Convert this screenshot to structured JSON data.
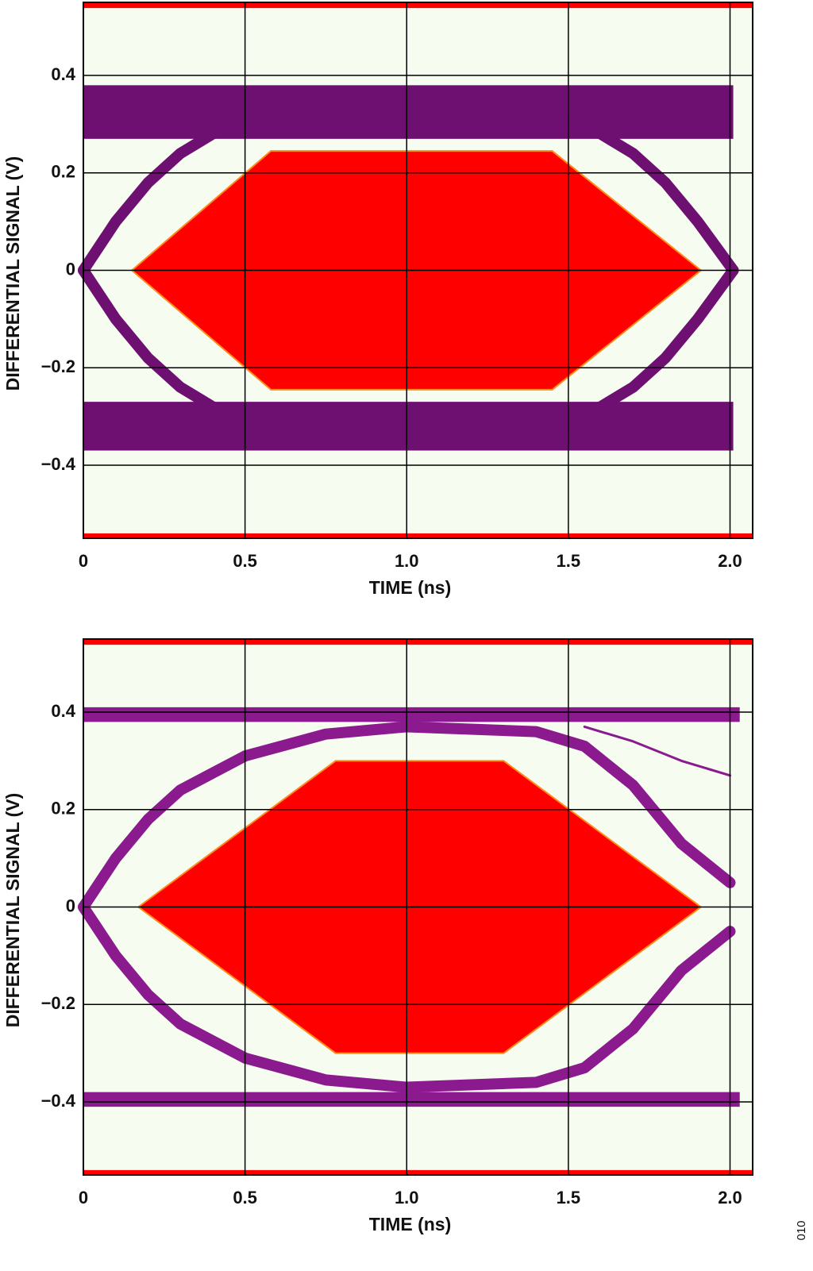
{
  "figure_code": "010",
  "chart_data": [
    {
      "type": "eye",
      "x_label": "TIME (ns)",
      "y_label": "DIFFERENTIAL SIGNAL (V)",
      "xlim": [
        0,
        2.07
      ],
      "ylim": [
        -0.55,
        0.55
      ],
      "xticks": [
        0,
        0.5,
        {
          "value": 1.0,
          "label": "1.0"
        },
        1.5,
        {
          "value": 2.0,
          "label": "2.0"
        }
      ],
      "yticks": [
        0.4,
        0.2,
        0,
        {
          "value": -0.2,
          "label": "−0.2"
        },
        {
          "value": -0.4,
          "label": "−0.4"
        }
      ],
      "grid": true,
      "background": "#f6fcf0",
      "mask_color": "#ff0000",
      "trace_color": "#6e0f72",
      "mask": {
        "x": [
          0.15,
          0.58,
          1.45,
          1.91,
          1.45,
          0.58
        ],
        "y": [
          0,
          0.245,
          0.245,
          0,
          -0.245,
          -0.245
        ]
      },
      "mask_limits": [
        0.54,
        -0.54
      ],
      "bands": [
        {
          "x": [
            0,
            2.01,
            2.01,
            0
          ],
          "y": [
            0.38,
            0.38,
            0.27,
            0.27
          ]
        },
        {
          "x": [
            0,
            2.01,
            2.01,
            0
          ],
          "y": [
            -0.27,
            -0.27,
            -0.37,
            -0.37
          ]
        }
      ],
      "traces": [
        {
          "x": [
            0,
            0.1,
            0.2,
            0.3,
            0.4,
            0.5
          ],
          "y": [
            0,
            0.1,
            0.18,
            0.24,
            0.28,
            0.3
          ]
        },
        {
          "x": [
            0,
            0.1,
            0.2,
            0.3,
            0.4,
            0.5
          ],
          "y": [
            0,
            -0.1,
            -0.18,
            -0.24,
            -0.28,
            -0.3
          ]
        },
        {
          "x": [
            1.5,
            1.6,
            1.7,
            1.8,
            1.9,
            2.01
          ],
          "y": [
            0.3,
            0.28,
            0.24,
            0.18,
            0.1,
            0
          ]
        },
        {
          "x": [
            1.5,
            1.6,
            1.7,
            1.8,
            1.9,
            2.01
          ],
          "y": [
            -0.3,
            -0.28,
            -0.24,
            -0.18,
            -0.1,
            0
          ]
        }
      ]
    },
    {
      "type": "eye",
      "x_label": "TIME (ns)",
      "y_label": "DIFFERENTIAL SIGNAL (V)",
      "xlim": [
        0,
        2.07
      ],
      "ylim": [
        -0.55,
        0.55
      ],
      "xticks": [
        0,
        0.5,
        {
          "value": 1.0,
          "label": "1.0"
        },
        1.5,
        {
          "value": 2.0,
          "label": "2.0"
        }
      ],
      "yticks": [
        0.4,
        0.2,
        0,
        {
          "value": -0.2,
          "label": "−0.2"
        },
        {
          "value": -0.4,
          "label": "−0.4"
        }
      ],
      "grid": true,
      "background": "#f6fcf0",
      "mask_color": "#ff0000",
      "trace_color": "#8a1a8e",
      "mask": {
        "x": [
          0.17,
          0.78,
          1.3,
          1.91,
          1.3,
          0.78
        ],
        "y": [
          0,
          0.3,
          0.3,
          0,
          -0.3,
          -0.3
        ]
      },
      "mask_limits": [
        0.54,
        -0.54
      ],
      "bands": [
        {
          "x": [
            0,
            2.03,
            2.03,
            0
          ],
          "y": [
            0.41,
            0.41,
            0.38,
            0.38
          ]
        },
        {
          "x": [
            0,
            2.03,
            2.03,
            0
          ],
          "y": [
            -0.38,
            -0.38,
            -0.41,
            -0.41
          ]
        }
      ],
      "traces": [
        {
          "x": [
            0,
            0.1,
            0.2,
            0.3,
            0.5,
            0.75,
            1.0,
            1.4,
            1.55,
            1.7,
            1.85,
            2.0
          ],
          "y": [
            0,
            0.1,
            0.18,
            0.24,
            0.31,
            0.355,
            0.37,
            0.36,
            0.33,
            0.25,
            0.13,
            0.05
          ]
        },
        {
          "x": [
            0,
            0.1,
            0.2,
            0.3,
            0.5,
            0.75,
            1.0,
            1.4,
            1.55,
            1.7,
            1.85,
            2.0
          ],
          "y": [
            0,
            -0.1,
            -0.18,
            -0.24,
            -0.31,
            -0.355,
            -0.37,
            -0.36,
            -0.33,
            -0.25,
            -0.13,
            -0.05
          ]
        },
        {
          "x": [
            1.55,
            1.7,
            1.85,
            2.0
          ],
          "y": [
            0.37,
            0.34,
            0.3,
            0.27
          ]
        }
      ]
    }
  ]
}
